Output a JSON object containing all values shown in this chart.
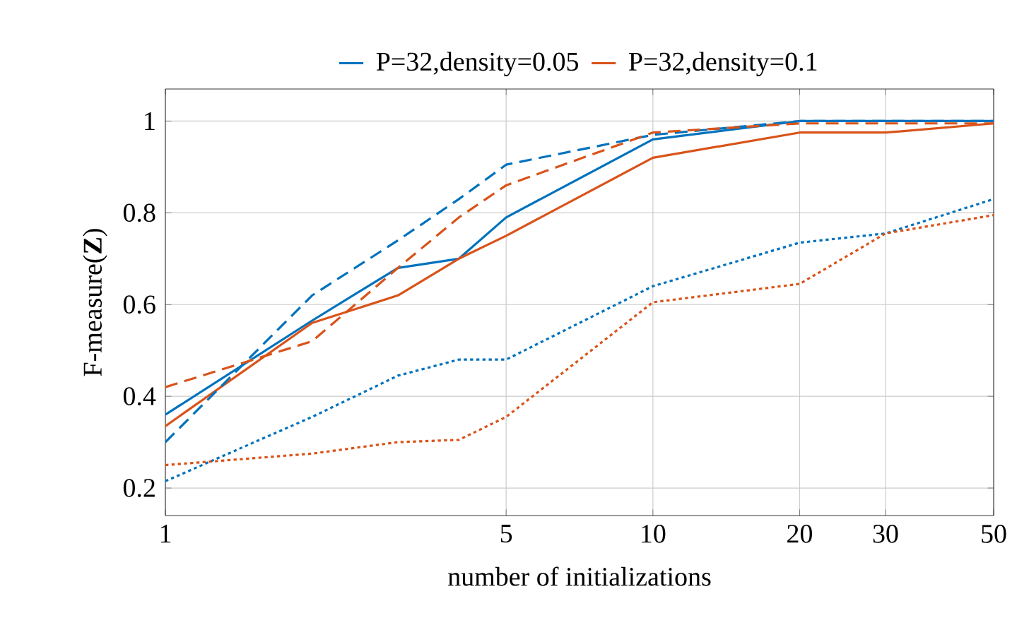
{
  "chart_data": {
    "type": "line",
    "xlabel": "number of initializations",
    "ylabel": "F-measure(**Z**)",
    "x": [
      1,
      2,
      3,
      4,
      5,
      10,
      20,
      30,
      50
    ],
    "series": [
      {
        "name": "P=32,density=0.05",
        "color": "#0072bd",
        "line_style": "solid",
        "values": [
          0.36,
          0.565,
          0.68,
          0.7,
          0.79,
          0.96,
          1.0,
          1.0,
          1.0
        ]
      },
      {
        "name": "P=32,density=0.1",
        "color": "#d95319",
        "line_style": "solid",
        "values": [
          0.335,
          0.56,
          0.62,
          0.7,
          0.75,
          0.92,
          0.975,
          0.975,
          0.995
        ]
      },
      {
        "color": "#0072bd",
        "line_style": "dashed",
        "values": [
          0.3,
          0.62,
          0.74,
          0.83,
          0.905,
          0.97,
          1.0,
          1.0,
          1.0
        ]
      },
      {
        "color": "#d95319",
        "line_style": "dashed",
        "values": [
          0.42,
          0.52,
          0.68,
          0.79,
          0.86,
          0.975,
          0.995,
          0.995,
          0.995
        ]
      },
      {
        "color": "#0072bd",
        "line_style": "dotted",
        "values": [
          0.215,
          0.355,
          0.445,
          0.48,
          0.48,
          0.64,
          0.735,
          0.755,
          0.83
        ]
      },
      {
        "color": "#d95319",
        "line_style": "dotted",
        "values": [
          0.25,
          0.275,
          0.3,
          0.305,
          0.355,
          0.605,
          0.645,
          0.755,
          0.795
        ]
      }
    ],
    "log": "x",
    "xlim": [
      1,
      50
    ],
    "ylim": [
      0.14,
      1.07
    ],
    "xticks": [
      1,
      5,
      10,
      20,
      30,
      50
    ],
    "yticks": [
      0.2,
      0.4,
      0.6,
      0.8,
      1
    ],
    "grid": true,
    "legend": "top",
    "marker": "none"
  }
}
